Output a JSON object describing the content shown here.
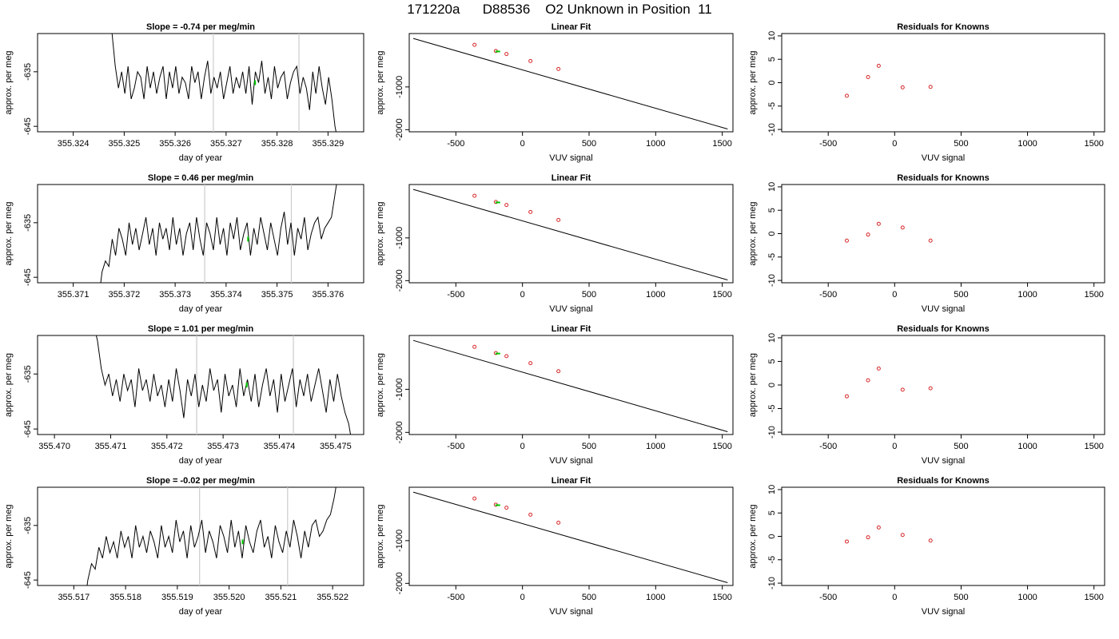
{
  "page_title": "171220a      D88536    O2 Unknown in Position  11",
  "colors": {
    "line": "#000000",
    "known_point": "#d62728",
    "unknown_point": "#00cc00",
    "marker_line": "#cccccc",
    "axis": "#000000"
  },
  "chart_data": [
    {
      "type": "line",
      "title": "Slope =  -0.74  per meg/min",
      "xlabel": "day of year",
      "ylabel": "approx. per meg",
      "xlim": [
        355.3233,
        355.3297
      ],
      "ylim": [
        -646,
        -628
      ],
      "xticks": [
        355.324,
        355.325,
        355.326,
        355.327,
        355.328,
        355.329
      ],
      "yticks": [
        -645,
        -635
      ],
      "ytick_labels": [
        "-645",
        "-635"
      ],
      "vlines": [
        355.32675,
        355.32843
      ],
      "series_x_range": [
        355.3247,
        355.3292
      ],
      "series": [
        {
          "values": [
            -626,
            -628,
            -634,
            -638,
            -635,
            -639,
            -634,
            -640,
            -638,
            -635,
            -636,
            -640,
            -634,
            -638,
            -635,
            -639,
            -636,
            -634,
            -640,
            -635,
            -638,
            -634,
            -639,
            -636,
            -637,
            -640,
            -634,
            -637,
            -635,
            -640,
            -636,
            -633,
            -639,
            -636,
            -638,
            -635,
            -640,
            -637,
            -634,
            -639,
            -636,
            -638,
            -635,
            -639,
            -634,
            -641,
            -635,
            -637,
            -633,
            -639,
            -636,
            -640,
            -634,
            -638,
            -636,
            -635,
            -640,
            -637,
            -635,
            -634,
            -639,
            -636,
            -638,
            -642,
            -635,
            -639,
            -634,
            -638,
            -641,
            -636,
            -640,
            -645,
            -648
          ]
        }
      ],
      "unknown_point": {
        "x": 355.32757,
        "y": -637
      }
    },
    {
      "type": "scatter",
      "title": "Linear Fit",
      "xlabel": "VUV signal",
      "ylabel": "approx. per meg",
      "xlim": [
        -850,
        1580
      ],
      "ylim": [
        -2050,
        250
      ],
      "xticks": [
        -500,
        0,
        500,
        1000,
        1500
      ],
      "xtick_labels": [
        "-500",
        "0",
        "500",
        "1000",
        "1500"
      ],
      "yticks": [
        -2000,
        -1000
      ],
      "ytick_labels": [
        "-2000",
        "-1000"
      ],
      "fit_line": {
        "x": [
          -820,
          1540
        ],
        "y": [
          135,
          -1985
        ]
      },
      "known_points": {
        "x": [
          -360,
          -200,
          -120,
          60,
          270
        ],
        "y": [
          -14,
          -158,
          -230,
          -392,
          -580
        ]
      },
      "unknown_point": {
        "x": -185,
        "y": -170
      }
    },
    {
      "type": "scatter",
      "title": "Residuals for Knowns",
      "xlabel": "VUV signal",
      "ylabel": "approx. per meg",
      "xlim": [
        -850,
        1580
      ],
      "ylim": [
        -10.5,
        10.5
      ],
      "xticks": [
        -500,
        0,
        500,
        1000,
        1500
      ],
      "xtick_labels": [
        "-500",
        "0",
        "500",
        "1000",
        "1500"
      ],
      "yticks": [
        -10,
        -5,
        0,
        5,
        10
      ],
      "ytick_labels": [
        "-10",
        "-5",
        "0",
        "5",
        "10"
      ],
      "known_points": {
        "x": [
          -360,
          -200,
          -120,
          60,
          270
        ],
        "y": [
          -2.8,
          1.2,
          3.6,
          -1.0,
          -0.9
        ]
      }
    },
    {
      "type": "line",
      "title": "Slope =  0.46  per meg/min",
      "xlabel": "day of year",
      "ylabel": "approx. per meg",
      "xlim": [
        355.3703,
        355.3767
      ],
      "ylim": [
        -646,
        -628
      ],
      "xticks": [
        355.371,
        355.372,
        355.373,
        355.374,
        355.375,
        355.376
      ],
      "yticks": [
        -645,
        -635
      ],
      "ytick_labels": [
        "-645",
        "-635"
      ],
      "vlines": [
        355.37358,
        355.37528
      ],
      "series_x_range": [
        355.3715,
        355.3762
      ],
      "series": [
        {
          "values": [
            -649,
            -644,
            -642,
            -643,
            -638,
            -641,
            -636,
            -638,
            -641,
            -635,
            -639,
            -636,
            -640,
            -637,
            -634,
            -639,
            -636,
            -641,
            -635,
            -638,
            -636,
            -640,
            -634,
            -639,
            -636,
            -641,
            -637,
            -635,
            -640,
            -634,
            -638,
            -641,
            -635,
            -637,
            -640,
            -634,
            -639,
            -636,
            -641,
            -635,
            -638,
            -634,
            -640,
            -637,
            -635,
            -641,
            -636,
            -639,
            -634,
            -637,
            -640,
            -635,
            -638,
            -641,
            -636,
            -633,
            -639,
            -635,
            -641,
            -636,
            -638,
            -634,
            -640,
            -637,
            -635,
            -634,
            -638,
            -636,
            -635,
            -634,
            -630,
            -626
          ]
        }
      ],
      "unknown_point": {
        "x": 355.37443,
        "y": -638
      }
    },
    {
      "type": "scatter",
      "title": "Linear Fit",
      "xlabel": "VUV signal",
      "ylabel": "approx. per meg",
      "xlim": [
        -850,
        1580
      ],
      "ylim": [
        -2050,
        250
      ],
      "xticks": [
        -500,
        0,
        500,
        1000,
        1500
      ],
      "xtick_labels": [
        "-500",
        "0",
        "500",
        "1000",
        "1500"
      ],
      "yticks": [
        -2000,
        -1000
      ],
      "ytick_labels": [
        "-2000",
        "-1000"
      ],
      "fit_line": {
        "x": [
          -820,
          1540
        ],
        "y": [
          135,
          -1985
        ]
      },
      "known_points": {
        "x": [
          -360,
          -200,
          -120,
          60,
          270
        ],
        "y": [
          -14,
          -158,
          -230,
          -392,
          -580
        ]
      },
      "unknown_point": {
        "x": -185,
        "y": -170
      }
    },
    {
      "type": "scatter",
      "title": "Residuals for Knowns",
      "xlabel": "VUV signal",
      "ylabel": "approx. per meg",
      "xlim": [
        -850,
        1580
      ],
      "ylim": [
        -10.5,
        10.5
      ],
      "xticks": [
        -500,
        0,
        500,
        1000,
        1500
      ],
      "xtick_labels": [
        "-500",
        "0",
        "500",
        "1000",
        "1500"
      ],
      "yticks": [
        -10,
        -5,
        0,
        5,
        10
      ],
      "ytick_labels": [
        "-10",
        "-5",
        "0",
        "5",
        "10"
      ],
      "known_points": {
        "x": [
          -360,
          -200,
          -120,
          60,
          270
        ],
        "y": [
          -1.5,
          -0.2,
          2.1,
          1.3,
          -1.5
        ]
      }
    },
    {
      "type": "line",
      "title": "Slope =  1.01  per meg/min",
      "xlabel": "day of year",
      "ylabel": "approx. per meg",
      "xlim": [
        355.4697,
        355.4755
      ],
      "ylim": [
        -646,
        -628
      ],
      "xticks": [
        355.47,
        355.471,
        355.472,
        355.473,
        355.474,
        355.475
      ],
      "yticks": [
        -645,
        -635
      ],
      "ytick_labels": [
        "-645",
        "-635"
      ],
      "vlines": [
        355.47253,
        355.47425
      ],
      "series_x_range": [
        355.4707,
        355.4753
      ],
      "series": [
        {
          "values": [
            -626,
            -629,
            -634,
            -637,
            -635,
            -639,
            -636,
            -640,
            -635,
            -638,
            -636,
            -641,
            -634,
            -638,
            -636,
            -640,
            -635,
            -639,
            -637,
            -641,
            -636,
            -640,
            -634,
            -638,
            -643,
            -636,
            -639,
            -635,
            -641,
            -637,
            -640,
            -634,
            -638,
            -636,
            -642,
            -635,
            -639,
            -637,
            -641,
            -634,
            -639,
            -636,
            -640,
            -635,
            -641,
            -637,
            -634,
            -639,
            -636,
            -642,
            -635,
            -640,
            -637,
            -634,
            -641,
            -636,
            -639,
            -635,
            -640,
            -637,
            -634,
            -638,
            -642,
            -636,
            -640,
            -635,
            -639,
            -642,
            -644,
            -648
          ]
        }
      ],
      "unknown_point": {
        "x": 355.47342,
        "y": -637
      }
    },
    {
      "type": "scatter",
      "title": "Linear Fit",
      "xlabel": "VUV signal",
      "ylabel": "approx. per meg",
      "xlim": [
        -850,
        1580
      ],
      "ylim": [
        -2050,
        250
      ],
      "xticks": [
        -500,
        0,
        500,
        1000,
        1500
      ],
      "xtick_labels": [
        "-500",
        "0",
        "500",
        "1000",
        "1500"
      ],
      "yticks": [
        -2000,
        -1000
      ],
      "ytick_labels": [
        "-2000",
        "-1000"
      ],
      "fit_line": {
        "x": [
          -820,
          1540
        ],
        "y": [
          135,
          -1985
        ]
      },
      "known_points": {
        "x": [
          -360,
          -200,
          -120,
          60,
          270
        ],
        "y": [
          -14,
          -158,
          -230,
          -392,
          -580
        ]
      },
      "unknown_point": {
        "x": -185,
        "y": -170
      }
    },
    {
      "type": "scatter",
      "title": "Residuals for Knowns",
      "xlabel": "VUV signal",
      "ylabel": "approx. per meg",
      "xlim": [
        -850,
        1580
      ],
      "ylim": [
        -10.5,
        10.5
      ],
      "xticks": [
        -500,
        0,
        500,
        1000,
        1500
      ],
      "xtick_labels": [
        "-500",
        "0",
        "500",
        "1000",
        "1500"
      ],
      "yticks": [
        -10,
        -5,
        0,
        5,
        10
      ],
      "ytick_labels": [
        "-10",
        "-5",
        "0",
        "5",
        "10"
      ],
      "known_points": {
        "x": [
          -360,
          -200,
          -120,
          60,
          270
        ],
        "y": [
          -2.4,
          1.0,
          3.5,
          -1.0,
          -0.7
        ]
      }
    },
    {
      "type": "line",
      "title": "Slope =  -0.02  per meg/min",
      "xlabel": "day of year",
      "ylabel": "approx. per meg",
      "xlim": [
        355.5163,
        355.5226
      ],
      "ylim": [
        -646,
        -628
      ],
      "xticks": [
        355.517,
        355.518,
        355.519,
        355.52,
        355.521,
        355.522
      ],
      "yticks": [
        -645,
        -635
      ],
      "ytick_labels": [
        "-645",
        "-635"
      ],
      "vlines": [
        355.51943,
        355.52113
      ],
      "series_x_range": [
        355.5172,
        355.5221
      ],
      "series": [
        {
          "values": [
            -650,
            -645,
            -642,
            -643,
            -639,
            -641,
            -637,
            -640,
            -638,
            -641,
            -636,
            -639,
            -637,
            -641,
            -635,
            -639,
            -637,
            -640,
            -636,
            -638,
            -641,
            -635,
            -639,
            -637,
            -640,
            -634,
            -638,
            -636,
            -641,
            -635,
            -639,
            -637,
            -634,
            -640,
            -636,
            -638,
            -641,
            -635,
            -637,
            -640,
            -634,
            -639,
            -636,
            -641,
            -635,
            -638,
            -640,
            -636,
            -634,
            -639,
            -637,
            -641,
            -635,
            -638,
            -640,
            -636,
            -639,
            -634,
            -637,
            -641,
            -636,
            -639,
            -635,
            -634,
            -637,
            -636,
            -634,
            -633,
            -630,
            -626
          ]
        }
      ],
      "unknown_point": {
        "x": 355.52026,
        "y": -638
      }
    },
    {
      "type": "scatter",
      "title": "Linear Fit",
      "xlabel": "VUV signal",
      "ylabel": "approx. per meg",
      "xlim": [
        -850,
        1580
      ],
      "ylim": [
        -2050,
        250
      ],
      "xticks": [
        -500,
        0,
        500,
        1000,
        1500
      ],
      "xtick_labels": [
        "-500",
        "0",
        "500",
        "1000",
        "1500"
      ],
      "yticks": [
        -2000,
        -1000
      ],
      "ytick_labels": [
        "-2000",
        "-1000"
      ],
      "fit_line": {
        "x": [
          -820,
          1540
        ],
        "y": [
          135,
          -1985
        ]
      },
      "known_points": {
        "x": [
          -360,
          -200,
          -120,
          60,
          270
        ],
        "y": [
          -14,
          -158,
          -230,
          -392,
          -580
        ]
      },
      "unknown_point": {
        "x": -185,
        "y": -170
      }
    },
    {
      "type": "scatter",
      "title": "Residuals for Knowns",
      "xlabel": "VUV signal",
      "ylabel": "approx. per meg",
      "xlim": [
        -850,
        1580
      ],
      "ylim": [
        -10.5,
        10.5
      ],
      "xticks": [
        -500,
        0,
        500,
        1000,
        1500
      ],
      "xtick_labels": [
        "-500",
        "0",
        "500",
        "1000",
        "1500"
      ],
      "yticks": [
        -10,
        -5,
        0,
        5,
        10
      ],
      "ytick_labels": [
        "-10",
        "-5",
        "0",
        "5",
        "10"
      ],
      "known_points": {
        "x": [
          -360,
          -200,
          -120,
          60,
          270
        ],
        "y": [
          -1.1,
          -0.2,
          1.9,
          0.3,
          -0.9
        ]
      }
    }
  ]
}
